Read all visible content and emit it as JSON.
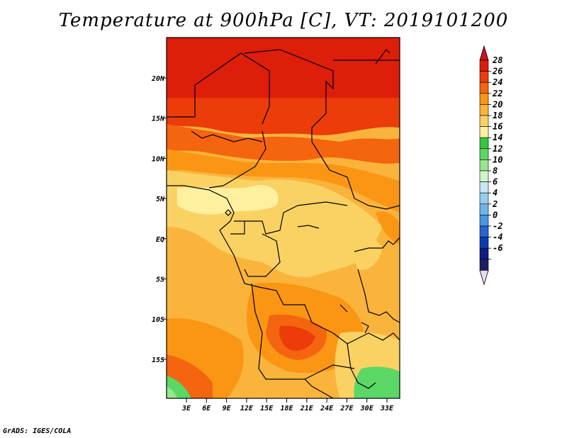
{
  "title": "Temperature at 900hPa [C], VT: 2019101200",
  "credit": "GrADS: IGES/COLA",
  "lat_ticks": [
    "20N",
    "15N",
    "10N",
    "5N",
    "EQ",
    "5S",
    "10S",
    "15S"
  ],
  "lon_ticks": [
    "3E",
    "6E",
    "9E",
    "12E",
    "15E",
    "18E",
    "21E",
    "24E",
    "27E",
    "30E",
    "33E"
  ],
  "colorbar": {
    "labels": [
      "28",
      "26",
      "24",
      "22",
      "20",
      "18",
      "16",
      "14",
      "12",
      "10",
      "8",
      "6",
      "4",
      "2",
      "0",
      "-2",
      "-4",
      "-6"
    ],
    "colors": [
      "#dc1e0a",
      "#eb3c0a",
      "#f5640f",
      "#fa9614",
      "#fab43c",
      "#fad264",
      "#fff0a0",
      "#32c83c",
      "#5ad764",
      "#96e68c",
      "#d2f5c8",
      "#c8e6f5",
      "#96cdf0",
      "#6eb4eb",
      "#4696e1",
      "#2864d2",
      "#0a3cb4",
      "#0a1e82",
      "#1e1e64"
    ],
    "over_color": "#c8141e",
    "under_color": "#e6dcf0"
  },
  "map": {
    "field": "temperature",
    "level": "900hPa",
    "units": "C",
    "valid_time": "2019101200",
    "lon_range": [
      0,
      35
    ],
    "lat_range": [
      -20,
      25
    ]
  }
}
